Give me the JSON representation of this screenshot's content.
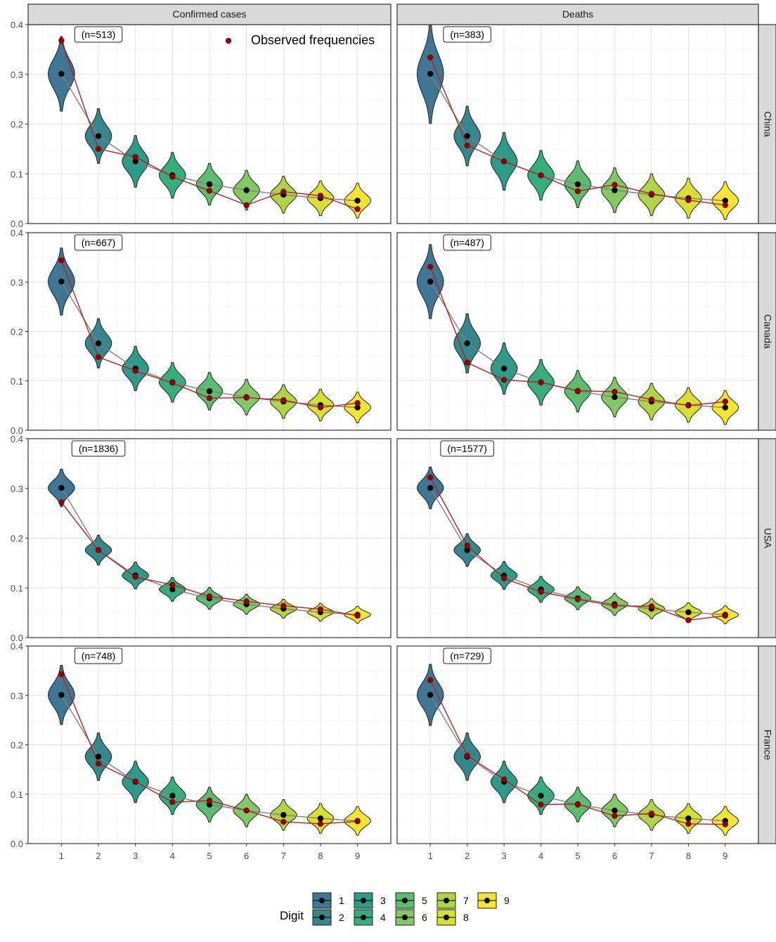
{
  "chart_data": {
    "type": "violin",
    "columns": [
      "Confirmed cases",
      "Deaths"
    ],
    "rows": [
      "China",
      "Canada",
      "USA",
      "France"
    ],
    "digits": [
      1,
      2,
      3,
      4,
      5,
      6,
      7,
      8,
      9
    ],
    "ylim": [
      0,
      0.4
    ],
    "y_ticks": [
      "0.0",
      "0.1",
      "0.2",
      "0.3",
      "0.4"
    ],
    "x_ticks": [
      "1",
      "2",
      "3",
      "4",
      "5",
      "6",
      "7",
      "8",
      "9"
    ],
    "legend_title": "Digit",
    "annotation_legend": "Observed frequencies",
    "digit_colors": [
      "#3E7693",
      "#35878D",
      "#2E9A89",
      "#36AD7D",
      "#5CBC70",
      "#82C864",
      "#B1D447",
      "#D8DE32",
      "#F7E531"
    ],
    "observed_color": "#8B0000",
    "expected_color": "#000000",
    "expected": [
      0.301,
      0.176,
      0.125,
      0.097,
      0.079,
      0.067,
      0.058,
      0.051,
      0.046
    ],
    "panels": [
      {
        "row": "China",
        "column": "Confirmed cases",
        "n_label": "(n=513)",
        "observed": [
          0.368,
          0.15,
          0.134,
          0.094,
          0.066,
          0.037,
          0.064,
          0.056,
          0.029
        ],
        "spread": [
          0.075,
          0.055,
          0.052,
          0.046,
          0.042,
          0.04,
          0.037,
          0.035,
          0.035
        ]
      },
      {
        "row": "China",
        "column": "Deaths",
        "n_label": "(n=383)",
        "observed": [
          0.334,
          0.157,
          0.125,
          0.097,
          0.065,
          0.078,
          0.06,
          0.047,
          0.037
        ],
        "spread": [
          0.1,
          0.06,
          0.058,
          0.05,
          0.047,
          0.045,
          0.042,
          0.04,
          0.038
        ]
      },
      {
        "row": "Canada",
        "column": "Confirmed cases",
        "n_label": "(n=667)",
        "observed": [
          0.344,
          0.148,
          0.12,
          0.096,
          0.065,
          0.066,
          0.061,
          0.046,
          0.055
        ],
        "spread": [
          0.068,
          0.05,
          0.045,
          0.04,
          0.038,
          0.036,
          0.034,
          0.032,
          0.031
        ]
      },
      {
        "row": "Canada",
        "column": "Deaths",
        "n_label": "(n=487)",
        "observed": [
          0.331,
          0.137,
          0.102,
          0.097,
          0.08,
          0.078,
          0.062,
          0.05,
          0.058
        ],
        "spread": [
          0.075,
          0.06,
          0.052,
          0.046,
          0.042,
          0.04,
          0.037,
          0.035,
          0.034
        ]
      },
      {
        "row": "USA",
        "column": "Confirmed cases",
        "n_label": "(n=1836)",
        "observed": [
          0.272,
          0.176,
          0.122,
          0.106,
          0.083,
          0.073,
          0.064,
          0.057,
          0.044
        ],
        "spread": [
          0.038,
          0.03,
          0.027,
          0.024,
          0.022,
          0.02,
          0.019,
          0.018,
          0.017
        ]
      },
      {
        "row": "USA",
        "column": "Deaths",
        "n_label": "(n=1577)",
        "observed": [
          0.322,
          0.185,
          0.119,
          0.092,
          0.077,
          0.064,
          0.063,
          0.035,
          0.044
        ],
        "spread": [
          0.042,
          0.033,
          0.028,
          0.026,
          0.023,
          0.022,
          0.02,
          0.019,
          0.018
        ]
      },
      {
        "row": "France",
        "column": "Confirmed cases",
        "n_label": "(n=748)",
        "observed": [
          0.343,
          0.162,
          0.126,
          0.084,
          0.087,
          0.067,
          0.044,
          0.04,
          0.045
        ],
        "spread": [
          0.06,
          0.048,
          0.042,
          0.038,
          0.035,
          0.033,
          0.031,
          0.03,
          0.029
        ]
      },
      {
        "row": "France",
        "column": "Deaths",
        "n_label": "(n=729)",
        "observed": [
          0.331,
          0.178,
          0.13,
          0.079,
          0.08,
          0.056,
          0.061,
          0.04,
          0.039
        ],
        "spread": [
          0.062,
          0.048,
          0.042,
          0.038,
          0.035,
          0.033,
          0.031,
          0.03,
          0.029
        ]
      }
    ]
  }
}
